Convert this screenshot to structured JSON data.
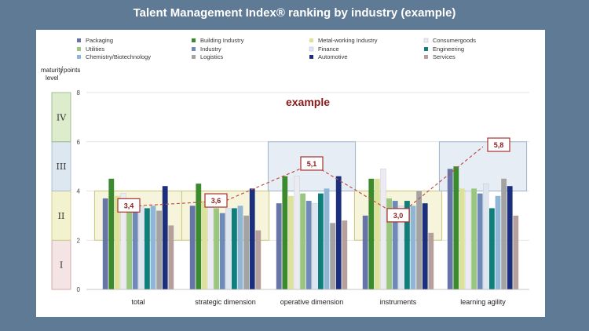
{
  "title": "Talent Management Index® ranking by industry (example)",
  "chart_data": {
    "type": "bar",
    "categories": [
      "total",
      "strategic dimension",
      "operative dimension",
      "instruments",
      "learning agility"
    ],
    "ylabel": "points",
    "level_axis_label": "maturity level",
    "ylim": [
      0,
      8
    ],
    "yticks": [
      "0",
      "2",
      "4",
      "6",
      "8"
    ],
    "annotation": "example",
    "series": [
      {
        "name": "Packaging",
        "color": "#6674a8",
        "values": [
          3.7,
          3.4,
          3.5,
          3.0,
          4.9
        ]
      },
      {
        "name": "Building Industry",
        "color": "#3c8a2e",
        "values": [
          4.5,
          4.3,
          4.6,
          4.5,
          5.0
        ]
      },
      {
        "name": "Metal-working Industry",
        "color": "#dde29a",
        "values": [
          3.8,
          3.6,
          3.8,
          4.5,
          4.1
        ]
      },
      {
        "name": "Consumergoods",
        "color": "#ecebf2",
        "values": [
          3.9,
          3.5,
          4.6,
          4.9,
          4.0
        ]
      },
      {
        "name": "Utilities",
        "color": "#9ac780",
        "values": [
          3.5,
          3.3,
          3.9,
          3.7,
          4.1
        ]
      },
      {
        "name": "Industry",
        "color": "#6f8ab8",
        "values": [
          3.3,
          3.1,
          3.6,
          3.6,
          3.9
        ]
      },
      {
        "name": "Finance",
        "color": "#dde6f0",
        "values": [
          3.4,
          3.3,
          3.5,
          3.4,
          4.3
        ]
      },
      {
        "name": "Engineering",
        "color": "#0e7f7a",
        "values": [
          3.3,
          3.3,
          3.9,
          3.6,
          3.3
        ]
      },
      {
        "name": "Chemistry/Biotechnology",
        "color": "#8fb6d6",
        "values": [
          3.4,
          3.4,
          4.1,
          3.4,
          3.8
        ]
      },
      {
        "name": "Logistics",
        "color": "#a3a3a3",
        "values": [
          3.2,
          3.0,
          2.7,
          4.0,
          4.5
        ]
      },
      {
        "name": "Automotive",
        "color": "#1c2f7c",
        "values": [
          4.2,
          4.1,
          4.6,
          3.5,
          4.2
        ]
      },
      {
        "name": "Services",
        "color": "#b5a09e",
        "values": [
          2.6,
          2.4,
          2.8,
          2.3,
          3.0
        ]
      }
    ],
    "averages": {
      "labels": [
        "3,4",
        "3,6",
        "5,1",
        "3,0",
        "5,8"
      ],
      "values": [
        3.4,
        3.6,
        5.1,
        3.0,
        5.8
      ]
    },
    "maturity_levels": [
      {
        "label": "I",
        "from": 0,
        "to": 2,
        "color": "#f4e4e4",
        "stroke": "#c99a9a"
      },
      {
        "label": "II",
        "from": 2,
        "to": 4,
        "color": "#f3f2cf",
        "stroke": "#c9c67a"
      },
      {
        "label": "III",
        "from": 4,
        "to": 6,
        "color": "#dde7f0",
        "stroke": "#9fb3c8"
      },
      {
        "label": "IV",
        "from": 6,
        "to": 8,
        "color": "#dceccd",
        "stroke": "#8fb07a"
      }
    ],
    "highlights": [
      {
        "category": "total",
        "level": "II"
      },
      {
        "category": "strategic dimension",
        "level": "II"
      },
      {
        "category": "operative dimension",
        "level": "III"
      },
      {
        "category": "instruments",
        "level": "II"
      },
      {
        "category": "learning agility",
        "level": "III"
      }
    ]
  }
}
